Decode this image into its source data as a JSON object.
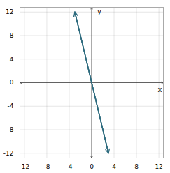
{
  "chart_data": {
    "type": "line",
    "x": [
      -3,
      3
    ],
    "values": [
      12,
      -12
    ],
    "color": "#2e6b7e",
    "marker": "arrow",
    "xlabel": "x",
    "ylabel": "y",
    "xlim": [
      -12.8,
      12.8
    ],
    "ylim": [
      -12.8,
      12.8
    ],
    "xticks": [
      -12,
      -8,
      -4,
      0,
      4,
      8,
      12
    ],
    "yticks": [
      -12,
      -8,
      -4,
      0,
      4,
      8,
      12
    ],
    "grid": true
  }
}
